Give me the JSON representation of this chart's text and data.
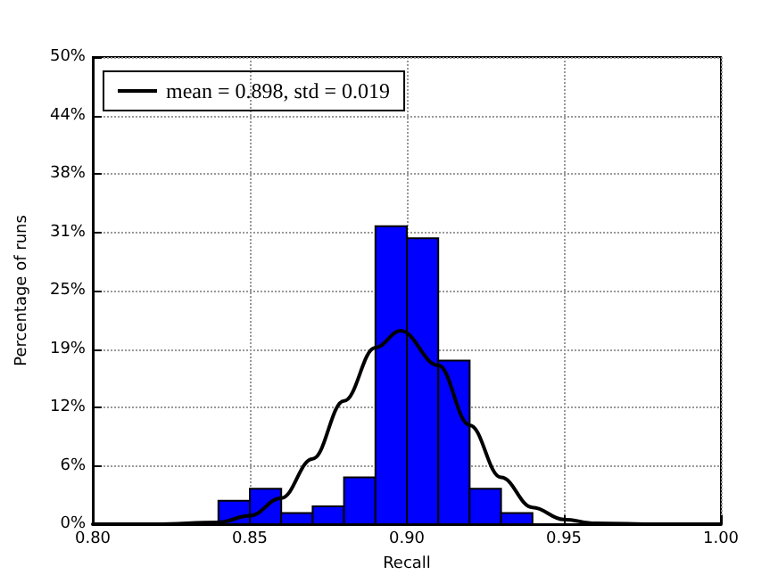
{
  "chart_data": {
    "type": "histogram",
    "xlabel": "Recall",
    "ylabel": "Percentage of runs",
    "series": [
      {
        "color": "#0000ff",
        "bins": [
          0.84,
          0.85,
          0.86,
          0.87,
          0.88,
          0.89,
          0.9,
          0.91,
          0.92,
          0.93,
          0.94
        ],
        "values": [
          2.5,
          3.8,
          1.2,
          1.9,
          5.0,
          31.9,
          30.6,
          17.5,
          3.8,
          1.2
        ]
      },
      {
        "type": "line",
        "name": "mean = 0.898, std = 0.019",
        "color": "#000000",
        "x": [
          0.8,
          0.82,
          0.84,
          0.85,
          0.86,
          0.87,
          0.88,
          0.89,
          0.898,
          0.91,
          0.92,
          0.93,
          0.94,
          0.95,
          0.96,
          0.98,
          1.0
        ],
        "values": [
          0,
          0,
          0.2,
          0.9,
          2.8,
          7.0,
          13.2,
          18.9,
          20.7,
          17.0,
          10.6,
          5.0,
          1.8,
          0.5,
          0.1,
          0,
          0
        ]
      }
    ],
    "xlim": [
      0.8,
      1.0
    ],
    "xticks": [
      {
        "value": 0.8,
        "label": "0.80"
      },
      {
        "value": 0.85,
        "label": "0.85"
      },
      {
        "value": 0.9,
        "label": "0.90"
      },
      {
        "value": 0.95,
        "label": "0.95"
      },
      {
        "value": 1.0,
        "label": "1.00"
      }
    ],
    "ylim": [
      0,
      50
    ],
    "yticks": [
      {
        "value": 0,
        "label": "0%"
      },
      {
        "value": 6.25,
        "label": "6%"
      },
      {
        "value": 12.5,
        "label": "12%"
      },
      {
        "value": 18.75,
        "label": "19%"
      },
      {
        "value": 25,
        "label": "25%"
      },
      {
        "value": 31.25,
        "label": "31%"
      },
      {
        "value": 37.5,
        "label": "38%"
      },
      {
        "value": 43.75,
        "label": "44%"
      },
      {
        "value": 50,
        "label": "50%"
      }
    ],
    "grid": true,
    "legend": "top left",
    "marker": "none",
    "line_style": "solid"
  }
}
